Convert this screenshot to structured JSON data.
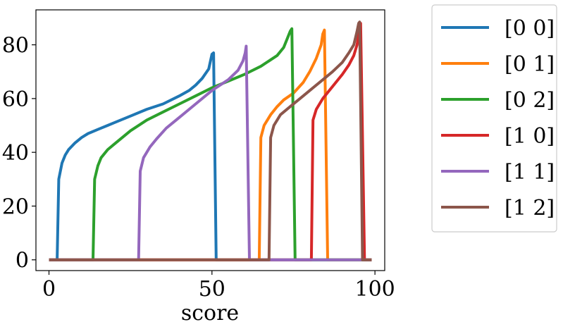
{
  "chart_data": {
    "type": "line",
    "title": "",
    "xlabel": "score",
    "ylabel": "",
    "xlim": [
      -4,
      103
    ],
    "ylim": [
      -4,
      93
    ],
    "xticks": [
      0,
      50,
      100
    ],
    "yticks": [
      0,
      20,
      40,
      60,
      80
    ],
    "legend_position": "outside-right",
    "grid": false,
    "series": [
      {
        "name": "[0 0]",
        "color": "#1f77b4",
        "points": [
          [
            0,
            0
          ],
          [
            2.5,
            0
          ],
          [
            3,
            30
          ],
          [
            4,
            36
          ],
          [
            5,
            39
          ],
          [
            6,
            41
          ],
          [
            8,
            43.5
          ],
          [
            10,
            45.5
          ],
          [
            12,
            47
          ],
          [
            15,
            48.5
          ],
          [
            18,
            50
          ],
          [
            20,
            51
          ],
          [
            25,
            53.5
          ],
          [
            30,
            56
          ],
          [
            35,
            58
          ],
          [
            40,
            61
          ],
          [
            43,
            63
          ],
          [
            45,
            65
          ],
          [
            47,
            67.5
          ],
          [
            49,
            71
          ],
          [
            50,
            76.5
          ],
          [
            50.5,
            77
          ],
          [
            51.3,
            0
          ],
          [
            99,
            0
          ]
        ]
      },
      {
        "name": "[0 1]",
        "color": "#ff7f0e",
        "points": [
          [
            0,
            0
          ],
          [
            64.5,
            0
          ],
          [
            65,
            45.5
          ],
          [
            66,
            50
          ],
          [
            68,
            54
          ],
          [
            70,
            57
          ],
          [
            72,
            59.5
          ],
          [
            75,
            62
          ],
          [
            78,
            66
          ],
          [
            80,
            70
          ],
          [
            82,
            75
          ],
          [
            83.5,
            80
          ],
          [
            84,
            84
          ],
          [
            84.5,
            85.5
          ],
          [
            85.5,
            0
          ],
          [
            99,
            0
          ]
        ]
      },
      {
        "name": "[0 2]",
        "color": "#2ca02c",
        "points": [
          [
            0,
            0
          ],
          [
            13.5,
            0
          ],
          [
            14,
            30
          ],
          [
            15,
            35
          ],
          [
            16,
            38
          ],
          [
            18,
            41
          ],
          [
            20,
            43
          ],
          [
            25,
            48
          ],
          [
            30,
            52
          ],
          [
            35,
            55
          ],
          [
            40,
            58
          ],
          [
            45,
            61
          ],
          [
            50,
            64
          ],
          [
            55,
            66.5
          ],
          [
            60,
            69
          ],
          [
            65,
            72
          ],
          [
            70,
            76
          ],
          [
            72,
            79
          ],
          [
            73,
            82
          ],
          [
            74,
            85
          ],
          [
            74.5,
            86
          ],
          [
            75.5,
            0
          ],
          [
            99,
            0
          ]
        ]
      },
      {
        "name": "[1 0]",
        "color": "#d62728",
        "points": [
          [
            0,
            0
          ],
          [
            80.5,
            0
          ],
          [
            81,
            52
          ],
          [
            82,
            56
          ],
          [
            84,
            60
          ],
          [
            86,
            63
          ],
          [
            88,
            66
          ],
          [
            90,
            69
          ],
          [
            92,
            72.5
          ],
          [
            93.5,
            76
          ],
          [
            94.5,
            80
          ],
          [
            95.2,
            85
          ],
          [
            95.6,
            88
          ],
          [
            96.8,
            0
          ],
          [
            99,
            0
          ]
        ]
      },
      {
        "name": "[1 1]",
        "color": "#9467bd",
        "points": [
          [
            0,
            0
          ],
          [
            27.5,
            0
          ],
          [
            28,
            33
          ],
          [
            29,
            38
          ],
          [
            31,
            42
          ],
          [
            33,
            45
          ],
          [
            36,
            49
          ],
          [
            40,
            53
          ],
          [
            45,
            58
          ],
          [
            50,
            63
          ],
          [
            55,
            67
          ],
          [
            58,
            70.5
          ],
          [
            59.5,
            74
          ],
          [
            60.2,
            77
          ],
          [
            60.5,
            79.5
          ],
          [
            61.5,
            0
          ],
          [
            99,
            0
          ]
        ]
      },
      {
        "name": "[1 2]",
        "color": "#8c564b",
        "points": [
          [
            0,
            0
          ],
          [
            67.5,
            0
          ],
          [
            68,
            45.5
          ],
          [
            69,
            50
          ],
          [
            71,
            54
          ],
          [
            74,
            57
          ],
          [
            77,
            60
          ],
          [
            80,
            63
          ],
          [
            84,
            67
          ],
          [
            87,
            70
          ],
          [
            90,
            73.5
          ],
          [
            92,
            77
          ],
          [
            93.5,
            80
          ],
          [
            94.5,
            85
          ],
          [
            95,
            88
          ],
          [
            95.3,
            88.5
          ],
          [
            96.2,
            0
          ],
          [
            99,
            0
          ]
        ]
      }
    ]
  }
}
